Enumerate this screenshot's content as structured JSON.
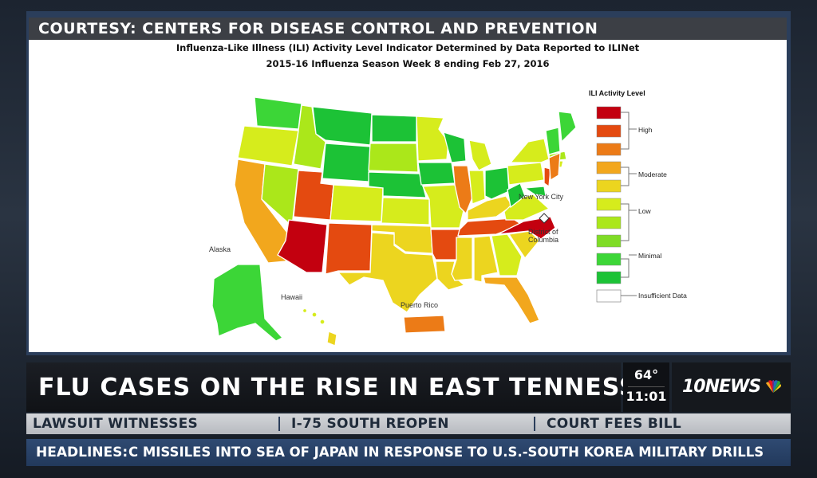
{
  "courtesy": "COURTESY: CENTERS FOR DISEASE CONTROL AND PREVENTION",
  "map": {
    "title_line1": "Influenza-Like Illness (ILI) Activity Level Indicator Determined by Data Reported to ILINet",
    "title_line2": "2015-16  Influenza Season Week  8 ending Feb 27, 2016",
    "labels": {
      "alaska": "Alaska",
      "hawaii": "Hawaii",
      "puerto_rico": "Puerto Rico",
      "nyc": "New York City",
      "dc_line1": "District of",
      "dc_line2": "Columbia"
    },
    "colors": {
      "level10": "#c3000f",
      "level9": "#e44a10",
      "level8": "#ec7b17",
      "level7": "#f2a71d",
      "level6": "#ecd51f",
      "level5": "#d6ec1c",
      "level4": "#abe71a",
      "level3": "#7fdc26",
      "level2": "#3cd637",
      "level1": "#1cc236",
      "insufficient": "#ffffff"
    }
  },
  "legend": {
    "title": "ILI Activity Level",
    "high": "High",
    "moderate": "Moderate",
    "low": "Low",
    "minimal": "Minimal",
    "insufficient": "Insufficient Data"
  },
  "lower_third": {
    "headline": "FLU CASES ON THE RISE IN EAST TENNESSEE",
    "temperature": "64°",
    "time": "11:01",
    "station_logo": "10NEWS",
    "peacock_icon": "nbc-peacock-icon"
  },
  "subheads": [
    "LAWSUIT WITNESSES",
    "I-75 SOUTH REOPEN",
    "COURT FEES BILL"
  ],
  "ticker": {
    "label": "HEADLINES:",
    "text": "C MISSILES INTO SEA OF JAPAN IN RESPONSE TO U.S.-SOUTH KOREA MILITARY DRILLS"
  }
}
